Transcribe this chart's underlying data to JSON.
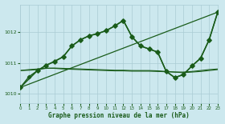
{
  "title": "Graphe pression niveau de la mer (hPa)",
  "bg_color": "#cce8ee",
  "grid_color": "#aaccd4",
  "line_color": "#1a5c1a",
  "xlim": [
    0,
    23
  ],
  "ylim": [
    1009.7,
    1012.9
  ],
  "yticks": [
    1010,
    1011,
    1012
  ],
  "xticks": [
    0,
    1,
    2,
    3,
    4,
    5,
    6,
    7,
    8,
    9,
    10,
    11,
    12,
    13,
    14,
    15,
    16,
    17,
    18,
    19,
    20,
    21,
    22,
    23
  ],
  "series_flat1": {
    "x": [
      0,
      1,
      2,
      3,
      4,
      5,
      6,
      7,
      8,
      9,
      10,
      11,
      12,
      13,
      14,
      15,
      16,
      17,
      18,
      19,
      20,
      21,
      22,
      23
    ],
    "y": [
      1010.75,
      1010.78,
      1010.8,
      1010.83,
      1010.82,
      1010.8,
      1010.79,
      1010.78,
      1010.77,
      1010.76,
      1010.75,
      1010.74,
      1010.74,
      1010.73,
      1010.73,
      1010.73,
      1010.72,
      1010.71,
      1010.7,
      1010.7,
      1010.72,
      1010.75,
      1010.78,
      1010.8
    ],
    "linewidth": 0.8
  },
  "series_flat2": {
    "x": [
      0,
      1,
      2,
      3,
      4,
      5,
      6,
      7,
      8,
      9,
      10,
      11,
      12,
      13,
      14,
      15,
      16,
      17,
      18,
      19,
      20,
      21,
      22,
      23
    ],
    "y": [
      1010.75,
      1010.76,
      1010.78,
      1010.82,
      1010.83,
      1010.82,
      1010.81,
      1010.8,
      1010.79,
      1010.78,
      1010.77,
      1010.76,
      1010.76,
      1010.75,
      1010.75,
      1010.75,
      1010.74,
      1010.72,
      1010.7,
      1010.68,
      1010.7,
      1010.72,
      1010.75,
      1010.78
    ],
    "linewidth": 0.8
  },
  "series_diagonal": {
    "x": [
      0,
      23
    ],
    "y": [
      1010.2,
      1012.65
    ],
    "linewidth": 0.9
  },
  "series_peaked": {
    "x": [
      0,
      1,
      2,
      3,
      4,
      5,
      6,
      7,
      8,
      9,
      10,
      11,
      12,
      13,
      14,
      15,
      16,
      17,
      18,
      19,
      20,
      21,
      22,
      23
    ],
    "y": [
      1010.2,
      1010.55,
      1010.75,
      1010.92,
      1011.05,
      1011.2,
      1011.55,
      1011.75,
      1011.88,
      1011.95,
      1012.05,
      1012.2,
      1012.38,
      1011.85,
      1011.55,
      1011.45,
      1011.35,
      1010.72,
      1010.52,
      1010.62,
      1010.9,
      1011.15,
      1011.75,
      1012.65
    ],
    "marker": "D",
    "markersize": 2.2,
    "linewidth": 1.0
  },
  "series_peaked2": {
    "x": [
      0,
      2,
      3,
      4,
      5,
      6,
      7,
      8,
      9,
      10,
      11,
      12,
      13,
      14,
      15,
      16,
      17,
      18,
      19,
      20,
      21,
      22,
      23
    ],
    "y": [
      1010.2,
      1010.75,
      1010.92,
      1011.05,
      1011.2,
      1011.55,
      1011.75,
      1011.88,
      1011.95,
      1012.05,
      1012.2,
      1012.38,
      1011.85,
      1011.55,
      1011.45,
      1011.35,
      1010.72,
      1010.52,
      1010.62,
      1010.9,
      1011.15,
      1011.75,
      1012.65
    ],
    "marker": "D",
    "markersize": 2.8,
    "linewidth": 1.1
  }
}
